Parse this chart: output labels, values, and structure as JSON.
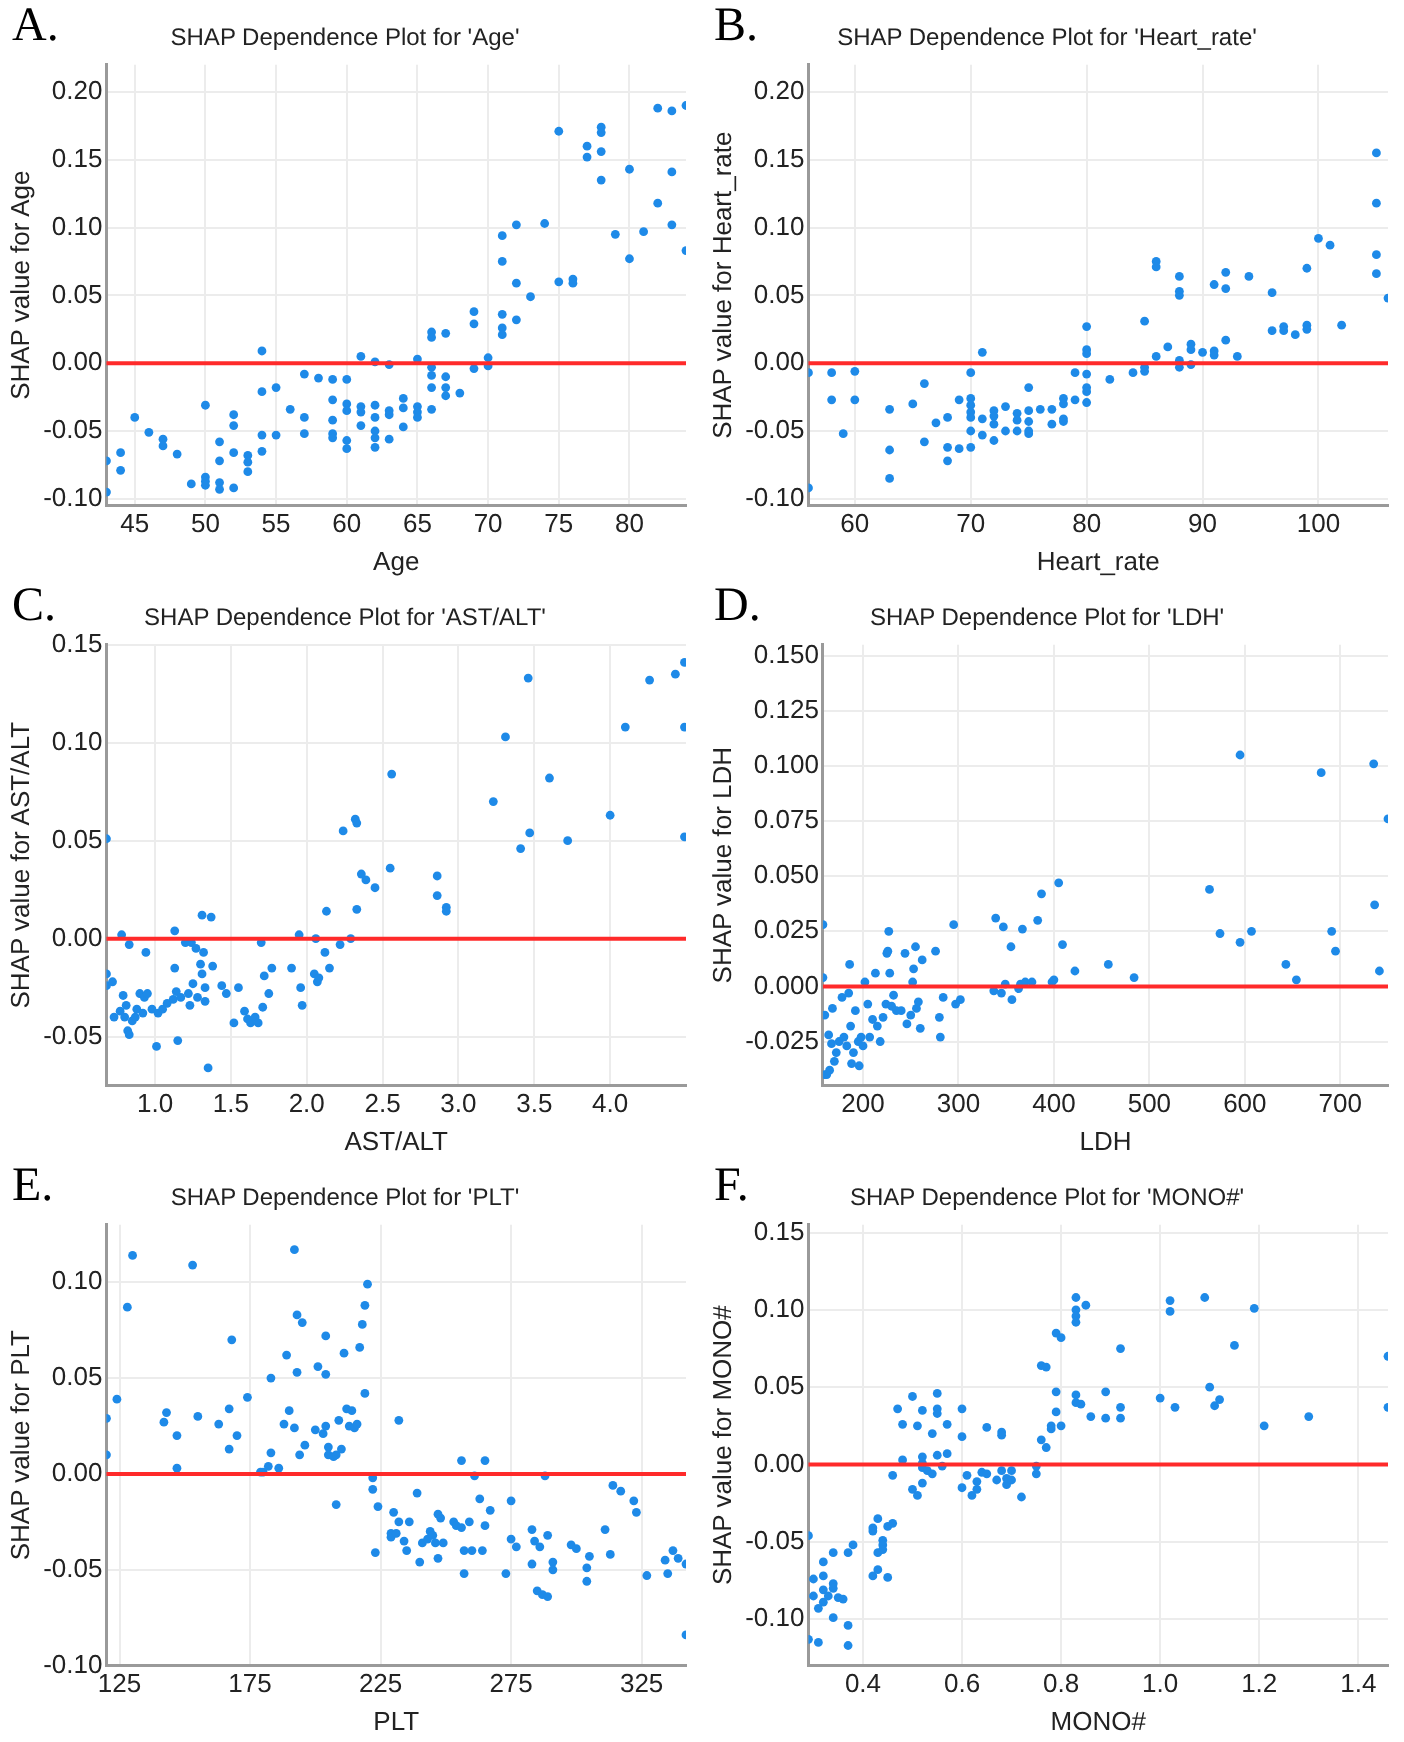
{
  "chart_data": [
    {
      "type": "scatter",
      "title": "SHAP Dependence Plot for 'Age'",
      "xlabel": "Age",
      "ylabel": "SHAP value for Age",
      "annotations": [
        "A."
      ],
      "color": "#1e8ae8",
      "marker": "circle",
      "grid": true,
      "xlim": [
        43,
        84
      ],
      "ylim": [
        -0.105,
        0.22
      ],
      "xticks": [
        45,
        50,
        55,
        60,
        65,
        70,
        75,
        80
      ],
      "yticks": [
        {
          "value": -0.1,
          "label": "-0.10"
        },
        {
          "value": -0.05,
          "label": "-0.05"
        },
        {
          "value": 0,
          "label": "0.00"
        },
        {
          "value": 0.05,
          "label": "0.05"
        },
        {
          "value": 0.1,
          "label": "0.10"
        },
        {
          "value": 0.15,
          "label": "0.15"
        },
        {
          "value": 0.2,
          "label": "0.20"
        }
      ],
      "ref_lines": [
        {
          "axis": "y",
          "value": 0,
          "color": "#ff2a2a"
        }
      ],
      "x": [
        43,
        43,
        44,
        44,
        45,
        46,
        47,
        47,
        48,
        49,
        50,
        50,
        50,
        50,
        51,
        51,
        51,
        51,
        52,
        52,
        52,
        52,
        53,
        53,
        53,
        54,
        54,
        54,
        54,
        55,
        55,
        56,
        57,
        57,
        57,
        58,
        59,
        59,
        59,
        59,
        59,
        60,
        60,
        60,
        60,
        60,
        61,
        61,
        61,
        61,
        62,
        62,
        62,
        62,
        62,
        62,
        63,
        63,
        63,
        63,
        64,
        64,
        64,
        65,
        65,
        65,
        65,
        66,
        66,
        66,
        66,
        66,
        66,
        67,
        67,
        67,
        67,
        68,
        69,
        69,
        69,
        70,
        70,
        71,
        71,
        71,
        71,
        71,
        72,
        72,
        72,
        73,
        74,
        75,
        75,
        76,
        76,
        77,
        77,
        78,
        78,
        78,
        78,
        79,
        80,
        80,
        81,
        82,
        82,
        83,
        83,
        83,
        84,
        84
      ],
      "values": [
        -0.072,
        -0.095,
        -0.066,
        -0.079,
        -0.04,
        -0.051,
        -0.056,
        -0.061,
        -0.067,
        -0.089,
        -0.031,
        -0.084,
        -0.087,
        -0.09,
        -0.058,
        -0.072,
        -0.088,
        -0.093,
        -0.038,
        -0.046,
        -0.066,
        -0.092,
        -0.068,
        -0.073,
        -0.08,
        0.009,
        -0.021,
        -0.053,
        -0.065,
        -0.018,
        -0.053,
        -0.034,
        -0.008,
        -0.04,
        -0.052,
        -0.011,
        -0.012,
        -0.027,
        -0.042,
        -0.052,
        -0.055,
        -0.012,
        -0.03,
        -0.035,
        -0.057,
        -0.063,
        0.005,
        -0.032,
        -0.036,
        -0.046,
        0.001,
        -0.031,
        -0.04,
        -0.05,
        -0.055,
        -0.062,
        -0.001,
        -0.035,
        -0.038,
        -0.056,
        -0.026,
        -0.033,
        -0.047,
        0.003,
        -0.032,
        -0.036,
        -0.04,
        0.023,
        0.019,
        -0.003,
        -0.009,
        -0.018,
        -0.034,
        0.022,
        -0.01,
        -0.018,
        -0.024,
        -0.022,
        0.038,
        0.029,
        -0.004,
        0.004,
        -0.002,
        0.094,
        0.075,
        0.036,
        0.026,
        0.021,
        0.102,
        0.059,
        0.032,
        0.049,
        0.103,
        0.171,
        0.06,
        0.062,
        0.059,
        0.16,
        0.152,
        0.174,
        0.17,
        0.156,
        0.135,
        0.095,
        0.143,
        0.077,
        0.097,
        0.188,
        0.118,
        0.186,
        0.141,
        0.102,
        0.19,
        0.083
      ]
    },
    {
      "type": "scatter",
      "title": "SHAP Dependence Plot for 'Heart_rate'",
      "xlabel": "Heart_rate",
      "ylabel": "SHAP value for Heart_rate",
      "annotations": [
        "B."
      ],
      "color": "#1e8ae8",
      "marker": "circle",
      "grid": true,
      "xlim": [
        56,
        106
      ],
      "ylim": [
        -0.105,
        0.22
      ],
      "xticks": [
        60,
        70,
        80,
        90,
        100
      ],
      "yticks": [
        {
          "value": -0.1,
          "label": "-0.10"
        },
        {
          "value": -0.05,
          "label": "-0.05"
        },
        {
          "value": 0,
          "label": "0.00"
        },
        {
          "value": 0.05,
          "label": "0.05"
        },
        {
          "value": 0.1,
          "label": "0.10"
        },
        {
          "value": 0.15,
          "label": "0.15"
        },
        {
          "value": 0.2,
          "label": "0.20"
        }
      ],
      "ref_lines": [
        {
          "axis": "y",
          "value": 0,
          "color": "#ff2a2a"
        }
      ],
      "x": [
        56,
        56,
        58,
        58,
        59,
        60,
        60,
        63,
        63,
        63,
        65,
        66,
        66,
        67,
        68,
        68,
        68,
        69,
        69,
        70,
        70,
        70,
        70,
        70,
        70,
        70,
        71,
        71,
        71,
        72,
        72,
        72,
        72,
        73,
        73,
        74,
        74,
        74,
        75,
        75,
        75,
        75,
        75,
        76,
        77,
        77,
        78,
        78,
        78,
        78,
        79,
        79,
        80,
        80,
        80,
        80,
        80,
        80,
        80,
        82,
        84,
        85,
        85,
        85,
        86,
        86,
        86,
        87,
        88,
        88,
        88,
        88,
        88,
        89,
        89,
        89,
        90,
        91,
        91,
        91,
        92,
        92,
        92,
        93,
        94,
        96,
        96,
        97,
        97,
        98,
        99,
        99,
        99,
        100,
        101,
        102,
        105,
        105,
        105,
        105,
        106
      ],
      "values": [
        -0.007,
        -0.092,
        -0.007,
        -0.027,
        -0.052,
        -0.006,
        -0.027,
        -0.034,
        -0.064,
        -0.085,
        -0.03,
        -0.015,
        -0.058,
        -0.044,
        -0.04,
        -0.062,
        -0.072,
        -0.027,
        -0.063,
        -0.007,
        -0.026,
        -0.031,
        -0.036,
        -0.04,
        -0.05,
        -0.062,
        0.008,
        -0.041,
        -0.053,
        -0.035,
        -0.039,
        -0.045,
        -0.057,
        -0.032,
        -0.05,
        -0.037,
        -0.042,
        -0.05,
        -0.018,
        -0.035,
        -0.043,
        -0.05,
        -0.052,
        -0.034,
        -0.034,
        -0.045,
        -0.026,
        -0.03,
        -0.041,
        -0.043,
        -0.007,
        -0.027,
        0.027,
        0.01,
        0.007,
        -0.008,
        -0.018,
        -0.021,
        -0.029,
        -0.012,
        -0.007,
        0.031,
        -0.003,
        -0.006,
        0.075,
        0.071,
        0.005,
        0.012,
        0.064,
        0.053,
        0.05,
        0.002,
        -0.003,
        0.014,
        0.01,
        -0.001,
        0.008,
        0.058,
        0.009,
        0.006,
        0.067,
        0.055,
        0.017,
        0.005,
        0.064,
        0.052,
        0.024,
        0.027,
        0.024,
        0.021,
        0.07,
        0.028,
        0.025,
        0.092,
        0.087,
        0.028,
        0.155,
        0.118,
        0.08,
        0.066,
        0.048
      ]
    },
    {
      "type": "scatter",
      "title": "SHAP Dependence Plot for 'AST/ALT'",
      "xlabel": "AST/ALT",
      "ylabel": "SHAP value for AST/ALT",
      "annotations": [
        "C."
      ],
      "color": "#1e8ae8",
      "marker": "circle",
      "grid": true,
      "xlim": [
        0.68,
        4.5
      ],
      "ylim": [
        -0.075,
        0.15
      ],
      "xticks": [
        {
          "value": 1,
          "label": "1.0"
        },
        1.5,
        {
          "value": 2,
          "label": "2.0"
        },
        2.5,
        {
          "value": 3,
          "label": "3.0"
        },
        3.5,
        {
          "value": 4,
          "label": "4.0"
        }
      ],
      "yticks": [
        {
          "value": -0.05,
          "label": "-0.05"
        },
        {
          "value": 0,
          "label": "0.00"
        },
        {
          "value": 0.05,
          "label": "0.05"
        },
        {
          "value": 0.1,
          "label": "0.10"
        },
        {
          "value": 0.15,
          "label": "0.15"
        }
      ],
      "ref_lines": [
        {
          "axis": "y",
          "value": 0,
          "color": "#ff2a2a"
        }
      ],
      "x": [
        0.68,
        0.68,
        0.68,
        0.72,
        0.73,
        0.77,
        0.78,
        0.79,
        0.8,
        0.81,
        0.82,
        0.83,
        0.83,
        0.85,
        0.87,
        0.88,
        0.9,
        0.92,
        0.93,
        0.94,
        0.95,
        0.98,
        1.01,
        1.02,
        1.05,
        1.08,
        1.12,
        1.13,
        1.13,
        1.14,
        1.15,
        1.17,
        1.2,
        1.22,
        1.23,
        1.24,
        1.25,
        1.27,
        1.28,
        1.3,
        1.31,
        1.31,
        1.32,
        1.33,
        1.33,
        1.35,
        1.37,
        1.38,
        1.44,
        1.47,
        1.52,
        1.55,
        1.59,
        1.61,
        1.63,
        1.66,
        1.68,
        1.7,
        1.71,
        1.72,
        1.75,
        1.77,
        1.9,
        1.95,
        1.96,
        1.97,
        2.05,
        2.06,
        2.07,
        2.08,
        2.12,
        2.13,
        2.15,
        2.22,
        2.24,
        2.29,
        2.32,
        2.33,
        2.33,
        2.36,
        2.39,
        2.45,
        2.55,
        2.56,
        2.86,
        2.86,
        2.92,
        2.92,
        3.23,
        3.31,
        3.41,
        3.46,
        3.47,
        3.6,
        3.72,
        4.0,
        4.1,
        4.26,
        4.43,
        4.49,
        4.49,
        4.49
      ],
      "values": [
        0.051,
        -0.018,
        -0.024,
        -0.022,
        -0.04,
        -0.037,
        0.002,
        -0.029,
        -0.04,
        -0.034,
        -0.047,
        -0.049,
        -0.003,
        -0.042,
        -0.04,
        -0.036,
        -0.028,
        -0.038,
        -0.03,
        -0.007,
        -0.028,
        -0.036,
        -0.055,
        -0.038,
        -0.036,
        -0.033,
        -0.031,
        0.004,
        -0.015,
        -0.027,
        -0.052,
        -0.03,
        -0.002,
        -0.028,
        -0.034,
        -0.002,
        -0.023,
        -0.005,
        -0.03,
        -0.013,
        0.012,
        -0.018,
        -0.007,
        -0.032,
        -0.025,
        -0.066,
        0.011,
        -0.014,
        -0.024,
        -0.028,
        -0.043,
        -0.025,
        -0.037,
        -0.041,
        -0.043,
        -0.04,
        -0.043,
        -0.002,
        -0.035,
        -0.019,
        -0.028,
        -0.015,
        -0.015,
        0.002,
        -0.025,
        -0.034,
        -0.018,
        0,
        -0.022,
        -0.02,
        -0.007,
        0.014,
        -0.015,
        -0.003,
        0.055,
        0,
        0.061,
        0.059,
        0.015,
        0.033,
        0.03,
        0.026,
        0.036,
        0.084,
        0.032,
        0.022,
        0.016,
        0.014,
        0.07,
        0.103,
        0.046,
        0.133,
        0.054,
        0.082,
        0.05,
        0.063,
        0.108,
        0.132,
        0.135,
        0.141,
        0.108,
        0.052
      ]
    },
    {
      "type": "scatter",
      "title": "SHAP Dependence Plot for 'LDH'",
      "xlabel": "LDH",
      "ylabel": "SHAP value for LDH",
      "annotations": [
        "D."
      ],
      "color": "#1e8ae8",
      "marker": "circle",
      "grid": true,
      "xlim": [
        158,
        750
      ],
      "ylim": [
        -0.045,
        0.155
      ],
      "xticks": [
        200,
        300,
        400,
        500,
        600,
        700
      ],
      "yticks": [
        {
          "value": -0.025,
          "label": "-0.025"
        },
        {
          "value": 0,
          "label": "0.000"
        },
        0.025,
        {
          "value": 0.05,
          "label": "0.050"
        },
        0.075,
        {
          "value": 0.1,
          "label": "0.100"
        },
        0.125,
        {
          "value": 0.15,
          "label": "0.150"
        }
      ],
      "ref_lines": [
        {
          "axis": "y",
          "value": 0,
          "color": "#ff2a2a"
        }
      ],
      "x": [
        158,
        158,
        160,
        160,
        162,
        164,
        165,
        167,
        168,
        170,
        172,
        175,
        178,
        180,
        183,
        185,
        186,
        187,
        188,
        190,
        192,
        195,
        196,
        198,
        200,
        202,
        205,
        207,
        210,
        213,
        215,
        218,
        221,
        224,
        225,
        226,
        227,
        228,
        230,
        232,
        235,
        240,
        244,
        246,
        250,
        252,
        253,
        255,
        256,
        258,
        260,
        262,
        276,
        280,
        281,
        284,
        295,
        297,
        302,
        337,
        339,
        345,
        347,
        349,
        355,
        356,
        363,
        365,
        367,
        370,
        377,
        383,
        387,
        398,
        400,
        405,
        409,
        422,
        457,
        484,
        563,
        574,
        595,
        595,
        607,
        643,
        654,
        680,
        691,
        695,
        735,
        736,
        741,
        750
      ],
      "values": [
        0.028,
        0.004,
        -0.013,
        -0.04,
        -0.04,
        -0.022,
        -0.038,
        -0.026,
        -0.01,
        -0.034,
        -0.03,
        -0.025,
        -0.005,
        -0.023,
        -0.027,
        -0.003,
        0.01,
        -0.018,
        -0.035,
        -0.03,
        -0.011,
        -0.025,
        -0.036,
        -0.023,
        -0.027,
        0.002,
        -0.008,
        -0.023,
        -0.015,
        0.006,
        -0.018,
        -0.025,
        -0.014,
        -0.008,
        0.015,
        0.016,
        0.025,
        0.006,
        -0.009,
        -0.004,
        -0.011,
        -0.011,
        0.015,
        -0.017,
        -0.013,
        0.002,
        0.008,
        0.018,
        -0.01,
        -0.007,
        -0.019,
        0.012,
        0.016,
        -0.014,
        -0.023,
        -0.005,
        0.028,
        -0.008,
        -0.006,
        -0.002,
        0.031,
        -0.003,
        0.027,
        0.001,
        0.018,
        -0.006,
        -0.001,
        0.001,
        0.026,
        0.002,
        0.002,
        0.03,
        0.042,
        0.002,
        0.003,
        0.047,
        0.019,
        0.007,
        0.01,
        0.004,
        0.044,
        0.024,
        0.105,
        0.02,
        0.025,
        0.01,
        0.003,
        0.097,
        0.025,
        0.016,
        0.101,
        0.037,
        0.007,
        0.076
      ]
    },
    {
      "type": "scatter",
      "title": "SHAP Dependence Plot for 'PLT'",
      "xlabel": "PLT",
      "ylabel": "SHAP value for PLT",
      "annotations": [
        "E."
      ],
      "color": "#1e8ae8",
      "marker": "circle",
      "grid": true,
      "xlim": [
        120,
        342
      ],
      "ylim": [
        -0.1,
        0.13
      ],
      "xticks": [
        125,
        175,
        225,
        275,
        325
      ],
      "yticks": [
        {
          "value": -0.1,
          "label": "-0.10"
        },
        {
          "value": -0.05,
          "label": "-0.05"
        },
        {
          "value": 0,
          "label": "0.00"
        },
        {
          "value": 0.05,
          "label": "0.05"
        },
        {
          "value": 0.1,
          "label": "0.10"
        }
      ],
      "ref_lines": [
        {
          "axis": "y",
          "value": 0,
          "color": "#ff2a2a"
        }
      ],
      "x": [
        120,
        120,
        124,
        128,
        130,
        142,
        143,
        147,
        147,
        153,
        155,
        163,
        167,
        167,
        168,
        170,
        174,
        179,
        180,
        182,
        183,
        183,
        186,
        188,
        189,
        190,
        192,
        192,
        193,
        193,
        194,
        195,
        196,
        200,
        201,
        203,
        204,
        204,
        204,
        205,
        205,
        207,
        208,
        208,
        209,
        210,
        211,
        212,
        213,
        214,
        215,
        216,
        217,
        218,
        219,
        219,
        220,
        222,
        222,
        223,
        224,
        229,
        229,
        230,
        231,
        232,
        232,
        234,
        235,
        236,
        239,
        240,
        241,
        243,
        244,
        245,
        246,
        247,
        247,
        248,
        249,
        253,
        254,
        256,
        256,
        257,
        257,
        259,
        260,
        261,
        263,
        264,
        265,
        265,
        267,
        273,
        275,
        275,
        277,
        283,
        283,
        284,
        285,
        286,
        287,
        288,
        289,
        289,
        291,
        291,
        298,
        300,
        304,
        304,
        305,
        311,
        313,
        314,
        317,
        322,
        323,
        327,
        334,
        335,
        337,
        339,
        342,
        342
      ],
      "values": [
        0.029,
        0.01,
        0.039,
        0.087,
        0.114,
        0.027,
        0.032,
        0.02,
        0.003,
        0.109,
        0.03,
        0.026,
        0.034,
        0.013,
        0.07,
        0.02,
        0.04,
        0.001,
        0.001,
        0.004,
        0.011,
        0.05,
        0.003,
        0.026,
        0.062,
        0.033,
        0.117,
        0.024,
        0.053,
        0.083,
        0.01,
        0.079,
        0.015,
        0.023,
        0.056,
        0.021,
        0.072,
        0.025,
        0.052,
        0.014,
        0.01,
        0.009,
        -0.016,
        0.01,
        0.028,
        0.013,
        0.063,
        0.034,
        0.025,
        0.033,
        0.024,
        0.026,
        0.066,
        0.078,
        0.088,
        0.042,
        0.099,
        -0.002,
        -0.008,
        -0.041,
        -0.017,
        -0.033,
        -0.031,
        -0.02,
        -0.031,
        0.028,
        -0.025,
        -0.035,
        -0.04,
        -0.025,
        -0.01,
        -0.046,
        -0.036,
        -0.034,
        -0.03,
        -0.032,
        -0.036,
        -0.044,
        -0.021,
        -0.023,
        -0.036,
        -0.025,
        -0.027,
        0.007,
        -0.028,
        -0.052,
        -0.04,
        -0.025,
        -0.04,
        -0.001,
        -0.013,
        -0.04,
        -0.027,
        0.007,
        -0.019,
        -0.052,
        -0.014,
        -0.034,
        -0.038,
        -0.029,
        -0.047,
        -0.035,
        -0.061,
        -0.038,
        -0.063,
        -0.001,
        -0.032,
        -0.064,
        -0.046,
        -0.05,
        -0.037,
        -0.039,
        -0.049,
        -0.056,
        -0.043,
        -0.029,
        -0.042,
        -0.006,
        -0.009,
        -0.014,
        -0.02,
        -0.053,
        -0.045,
        -0.052,
        -0.04,
        -0.044,
        -0.047,
        -0.084
      ]
    },
    {
      "type": "scatter",
      "title": "SHAP Dependence Plot for 'MONO#'",
      "xlabel": "MONO#",
      "ylabel": "SHAP value for MONO#",
      "annotations": [
        "F."
      ],
      "color": "#1e8ae8",
      "marker": "circle",
      "grid": true,
      "xlim": [
        0.29,
        1.46
      ],
      "ylim": [
        -0.13,
        0.155
      ],
      "xticks": [
        0.4,
        0.6,
        0.8,
        {
          "value": 1,
          "label": "1.0"
        },
        1.2,
        1.4
      ],
      "yticks": [
        {
          "value": -0.1,
          "label": "-0.10"
        },
        {
          "value": -0.05,
          "label": "-0.05"
        },
        {
          "value": 0,
          "label": "0.00"
        },
        {
          "value": 0.05,
          "label": "0.05"
        },
        {
          "value": 0.1,
          "label": "0.10"
        },
        {
          "value": 0.15,
          "label": "0.15"
        }
      ],
      "ref_lines": [
        {
          "axis": "y",
          "value": 0,
          "color": "#ff2a2a"
        }
      ],
      "x": [
        0.29,
        0.29,
        0.3,
        0.3,
        0.31,
        0.31,
        0.32,
        0.32,
        0.32,
        0.32,
        0.33,
        0.34,
        0.34,
        0.34,
        0.34,
        0.35,
        0.36,
        0.37,
        0.37,
        0.37,
        0.38,
        0.42,
        0.42,
        0.42,
        0.43,
        0.43,
        0.43,
        0.44,
        0.44,
        0.44,
        0.45,
        0.45,
        0.46,
        0.46,
        0.47,
        0.48,
        0.48,
        0.5,
        0.5,
        0.51,
        0.51,
        0.52,
        0.52,
        0.52,
        0.52,
        0.52,
        0.53,
        0.54,
        0.54,
        0.55,
        0.55,
        0.55,
        0.55,
        0.56,
        0.57,
        0.57,
        0.6,
        0.6,
        0.6,
        0.61,
        0.62,
        0.63,
        0.63,
        0.64,
        0.65,
        0.65,
        0.67,
        0.68,
        0.68,
        0.68,
        0.69,
        0.69,
        0.7,
        0.7,
        0.72,
        0.75,
        0.75,
        0.76,
        0.76,
        0.77,
        0.77,
        0.78,
        0.78,
        0.79,
        0.79,
        0.79,
        0.8,
        0.8,
        0.83,
        0.83,
        0.83,
        0.83,
        0.83,
        0.83,
        0.84,
        0.85,
        0.86,
        0.89,
        0.89,
        0.92,
        0.92,
        0.92,
        1.0,
        1.02,
        1.02,
        1.03,
        1.09,
        1.1,
        1.11,
        1.12,
        1.15,
        1.19,
        1.21,
        1.3,
        1.46,
        1.46
      ],
      "values": [
        -0.046,
        -0.113,
        -0.074,
        -0.085,
        -0.093,
        -0.115,
        -0.063,
        -0.072,
        -0.081,
        -0.089,
        -0.085,
        -0.057,
        -0.077,
        -0.08,
        -0.099,
        -0.086,
        -0.087,
        -0.057,
        -0.104,
        -0.117,
        -0.052,
        -0.041,
        -0.043,
        -0.072,
        -0.035,
        -0.057,
        -0.068,
        -0.049,
        -0.052,
        -0.055,
        -0.04,
        -0.073,
        -0.038,
        -0.007,
        0.036,
        0.026,
        0.003,
        -0.016,
        0.044,
        0.025,
        -0.02,
        0.035,
        0.005,
        0.001,
        -0.002,
        -0.012,
        -0.004,
        0.02,
        -0.006,
        0.046,
        0.036,
        0.033,
        0.006,
        -0.001,
        0.026,
        0.007,
        0.036,
        0.018,
        -0.015,
        -0.007,
        -0.02,
        -0.011,
        -0.016,
        -0.005,
        0.024,
        -0.006,
        -0.01,
        0.021,
        0.019,
        -0.004,
        -0.013,
        -0.009,
        -0.004,
        -0.01,
        -0.021,
        -0.001,
        -0.006,
        0.064,
        0.016,
        0.063,
        0.011,
        0.023,
        0.025,
        0.085,
        0.047,
        0.034,
        0.082,
        0.025,
        0.108,
        0.1,
        0.096,
        0.092,
        0.045,
        0.04,
        0.039,
        0.103,
        0.031,
        0.047,
        0.03,
        0.075,
        0.037,
        0.03,
        0.043,
        0.106,
        0.099,
        0.037,
        0.108,
        0.05,
        0.038,
        0.042,
        0.077,
        0.101,
        0.025,
        0.031,
        0.07,
        0.037
      ]
    }
  ]
}
